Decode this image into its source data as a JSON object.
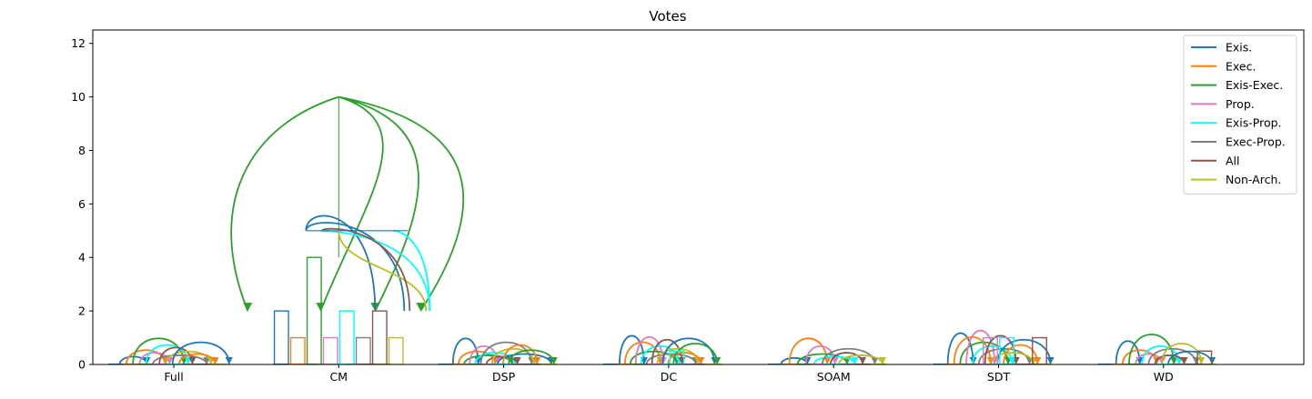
{
  "chart_data": {
    "type": "bar",
    "title": "Votes",
    "xlabel": "",
    "ylabel": "",
    "ylim": [
      0,
      12.5
    ],
    "yticks": [
      0,
      2,
      4,
      6,
      8,
      10,
      12
    ],
    "categories": [
      "Full",
      "CM",
      "DSP",
      "DC",
      "SOAM",
      "SDT",
      "WD"
    ],
    "legend_position": "top-right",
    "grid": false,
    "series": [
      {
        "name": "Exis.",
        "color": "#1f77b4",
        "values": [
          0,
          2,
          0,
          0,
          0,
          0,
          0
        ]
      },
      {
        "name": "Exec.",
        "color": "#ff7f0e",
        "values": [
          0,
          1,
          0,
          0,
          0,
          0,
          0
        ]
      },
      {
        "name": "Exis-Exec.",
        "color": "#2ca02c",
        "values": [
          0,
          4,
          0,
          0,
          0,
          0,
          0
        ]
      },
      {
        "name": "Prop.",
        "color": "#e377c2",
        "values": [
          0,
          1,
          0,
          0,
          0,
          1,
          0
        ]
      },
      {
        "name": "Exis-Prop.",
        "color": "#00ffff",
        "values": [
          0,
          2,
          0,
          0.5,
          0,
          1,
          0
        ]
      },
      {
        "name": "Exec-Prop.",
        "color": "#7f7f7f",
        "values": [
          0,
          1,
          0,
          0,
          0,
          0,
          0
        ]
      },
      {
        "name": "All",
        "color": "#8c564b",
        "values": [
          0,
          2,
          0,
          0,
          0,
          1,
          0.5
        ]
      },
      {
        "name": "Non-Arch.",
        "color": "#bcbd22",
        "values": [
          0,
          1,
          0,
          0,
          0,
          0,
          0
        ]
      }
    ]
  }
}
